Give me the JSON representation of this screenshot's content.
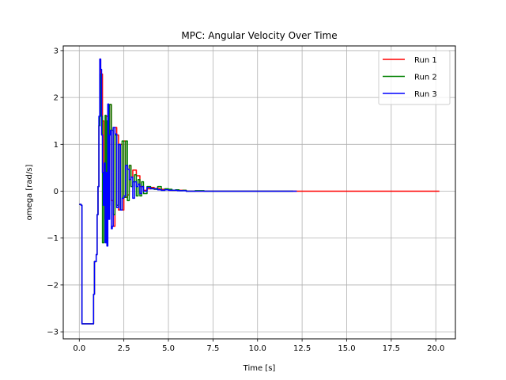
{
  "chart_data": {
    "type": "line",
    "title": "MPC: Angular Velocity Over Time",
    "xlabel": "Time [s]",
    "ylabel": "omega [rad/s]",
    "xlim": [
      -0.9,
      21.1
    ],
    "ylim": [
      -3.15,
      3.1
    ],
    "xticks": [
      0.0,
      2.5,
      5.0,
      7.5,
      10.0,
      12.5,
      15.0,
      17.5,
      20.0
    ],
    "xtick_labels": [
      "0.0",
      "2.5",
      "5.0",
      "7.5",
      "10.0",
      "12.5",
      "15.0",
      "17.5",
      "20.0"
    ],
    "yticks": [
      -3,
      -2,
      -1,
      0,
      1,
      2,
      3
    ],
    "ytick_labels": [
      "−3",
      "−2",
      "−1",
      "0",
      "1",
      "2",
      "3"
    ],
    "grid": true,
    "legend_position": "top-right",
    "series": [
      {
        "name": "Run 1",
        "color": "#ff0000",
        "x": [
          0.0,
          0.1,
          0.15,
          0.3,
          0.5,
          0.75,
          0.8,
          0.85,
          0.95,
          1.0,
          1.05,
          1.1,
          1.15,
          1.2,
          1.3,
          1.38,
          1.45,
          1.5,
          1.6,
          1.7,
          1.8,
          1.9,
          2.0,
          2.1,
          2.2,
          2.3,
          2.4,
          2.5,
          2.6,
          2.7,
          2.8,
          2.9,
          3.0,
          3.2,
          3.4,
          3.6,
          3.8,
          4.0,
          4.2,
          4.5,
          5.0,
          5.5,
          6.0,
          6.5,
          7.0,
          8.0,
          10.0,
          12.0,
          12.2,
          14.0,
          16.0,
          18.0,
          20.2
        ],
        "y": [
          -0.28,
          -0.3,
          -2.83,
          -2.83,
          -2.83,
          -2.83,
          -2.2,
          -1.5,
          -1.35,
          -0.5,
          0.1,
          1.4,
          2.82,
          2.5,
          1.5,
          0.4,
          -0.6,
          1.6,
          -0.2,
          1.85,
          -0.2,
          -0.75,
          1.36,
          1.2,
          -0.4,
          1.0,
          -0.4,
          1.07,
          -0.13,
          -0.08,
          0.55,
          0.3,
          0.45,
          0.33,
          0.1,
          0.02,
          0.05,
          0.08,
          0.06,
          0.04,
          0.02,
          0.02,
          0.0,
          0.0,
          0.0,
          0.0,
          0.0,
          0.0,
          0.0,
          0.0,
          0.0,
          0.0,
          0.0
        ]
      },
      {
        "name": "Run 2",
        "color": "#008000",
        "x": [
          0.0,
          0.1,
          0.15,
          0.3,
          0.5,
          0.75,
          0.8,
          0.85,
          0.95,
          1.0,
          1.05,
          1.1,
          1.15,
          1.2,
          1.3,
          1.38,
          1.45,
          1.5,
          1.55,
          1.6,
          1.7,
          1.8,
          1.9,
          2.0,
          2.1,
          2.2,
          2.3,
          2.4,
          2.5,
          2.6,
          2.7,
          2.8,
          2.9,
          3.0,
          3.1,
          3.2,
          3.3,
          3.4,
          3.5,
          3.6,
          3.8,
          4.0,
          4.2,
          4.4,
          4.6,
          4.8,
          5.0,
          5.2,
          5.4,
          5.6,
          5.8,
          6.0,
          6.5,
          7.0,
          8.0,
          10.0,
          12.0
        ],
        "y": [
          -0.28,
          -0.3,
          -2.83,
          -2.83,
          -2.83,
          -2.83,
          -2.2,
          -1.5,
          -1.35,
          -0.5,
          0.1,
          1.4,
          2.5,
          1.6,
          -1.1,
          0.4,
          1.62,
          -0.5,
          1.5,
          -0.3,
          1.85,
          1.3,
          -0.5,
          1.2,
          -0.3,
          1.0,
          -0.4,
          1.07,
          -0.13,
          1.07,
          -0.2,
          0.55,
          0.1,
          0.2,
          0.35,
          -0.1,
          0.25,
          -0.1,
          0.2,
          -0.05,
          0.1,
          0.06,
          0.04,
          0.1,
          0.02,
          0.05,
          0.04,
          0.02,
          0.03,
          0.01,
          0.02,
          0.0,
          0.01,
          0.0,
          0.0,
          0.0,
          0.0
        ]
      },
      {
        "name": "Run 3",
        "color": "#0000ff",
        "x": [
          0.0,
          0.1,
          0.15,
          0.3,
          0.5,
          0.75,
          0.8,
          0.85,
          0.95,
          1.0,
          1.05,
          1.1,
          1.15,
          1.2,
          1.25,
          1.3,
          1.35,
          1.4,
          1.45,
          1.5,
          1.55,
          1.6,
          1.65,
          1.7,
          1.75,
          1.8,
          1.85,
          1.9,
          1.95,
          2.0,
          2.1,
          2.2,
          2.3,
          2.4,
          2.5,
          2.6,
          2.7,
          2.8,
          2.9,
          3.0,
          3.1,
          3.2,
          3.3,
          3.4,
          3.5,
          3.6,
          3.8,
          4.0,
          4.2,
          4.4,
          4.6,
          4.8,
          5.0,
          5.2,
          5.5,
          6.0,
          6.5,
          7.0,
          8.0,
          10.0,
          12.2
        ],
        "y": [
          -0.28,
          -0.3,
          -2.83,
          -2.83,
          -2.83,
          -2.83,
          -2.2,
          -1.5,
          -1.35,
          -0.5,
          0.1,
          1.6,
          2.82,
          2.6,
          1.2,
          0.4,
          -0.3,
          0.6,
          -1.1,
          0.4,
          -1.17,
          1.86,
          -0.6,
          1.2,
          1.3,
          -0.8,
          -0.75,
          1.36,
          1.36,
          1.22,
          -0.35,
          1.0,
          -0.4,
          -0.15,
          -0.1,
          0.55,
          0.47,
          0.25,
          0.3,
          -0.15,
          0.2,
          0.1,
          0.15,
          -0.05,
          0.1,
          0.0,
          0.08,
          0.05,
          0.05,
          0.03,
          0.02,
          0.03,
          0.02,
          0.02,
          0.01,
          0.0,
          0.0,
          0.0,
          0.0,
          0.0,
          0.0
        ]
      }
    ]
  }
}
